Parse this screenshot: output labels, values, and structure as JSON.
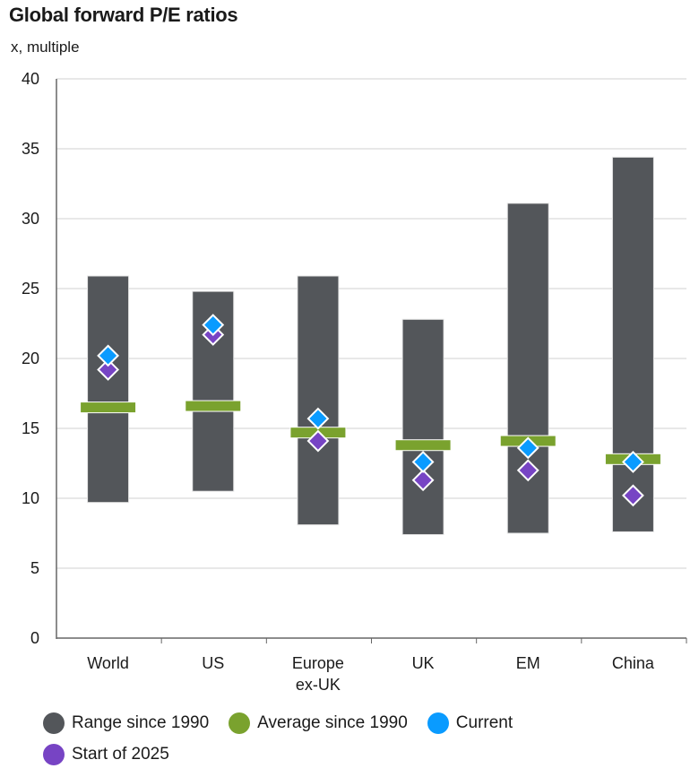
{
  "chart_data": {
    "type": "range-bar",
    "title": "Global forward P/E ratios",
    "subtitle": "x, multiple",
    "categories": [
      "World",
      "US",
      "Europe ex-UK",
      "UK",
      "EM",
      "China"
    ],
    "category_labels": [
      [
        "World"
      ],
      [
        "US"
      ],
      [
        "Europe",
        "ex-UK"
      ],
      [
        "UK"
      ],
      [
        "EM"
      ],
      [
        "China"
      ]
    ],
    "ylim": [
      0,
      40
    ],
    "yticks": [
      0,
      5,
      10,
      15,
      20,
      25,
      30,
      35,
      40
    ],
    "grid": true,
    "legend_placement": "bottom",
    "series": [
      {
        "name": "Range since 1990",
        "color": "#53565a",
        "low": [
          9.7,
          10.5,
          8.1,
          7.4,
          7.5,
          7.6
        ],
        "high": [
          25.9,
          24.8,
          25.9,
          22.8,
          31.1,
          34.4
        ]
      },
      {
        "name": "Average since 1990",
        "color": "#7aa22e",
        "values": [
          16.5,
          16.6,
          14.7,
          13.8,
          14.1,
          12.8
        ]
      },
      {
        "name": "Current",
        "color": "#0a9bff",
        "values": [
          20.2,
          22.4,
          15.7,
          12.6,
          13.6,
          12.6
        ]
      },
      {
        "name": "Start of 2025",
        "color": "#7744c4",
        "values": [
          19.2,
          21.7,
          14.1,
          11.3,
          12.0,
          10.2
        ]
      }
    ]
  }
}
